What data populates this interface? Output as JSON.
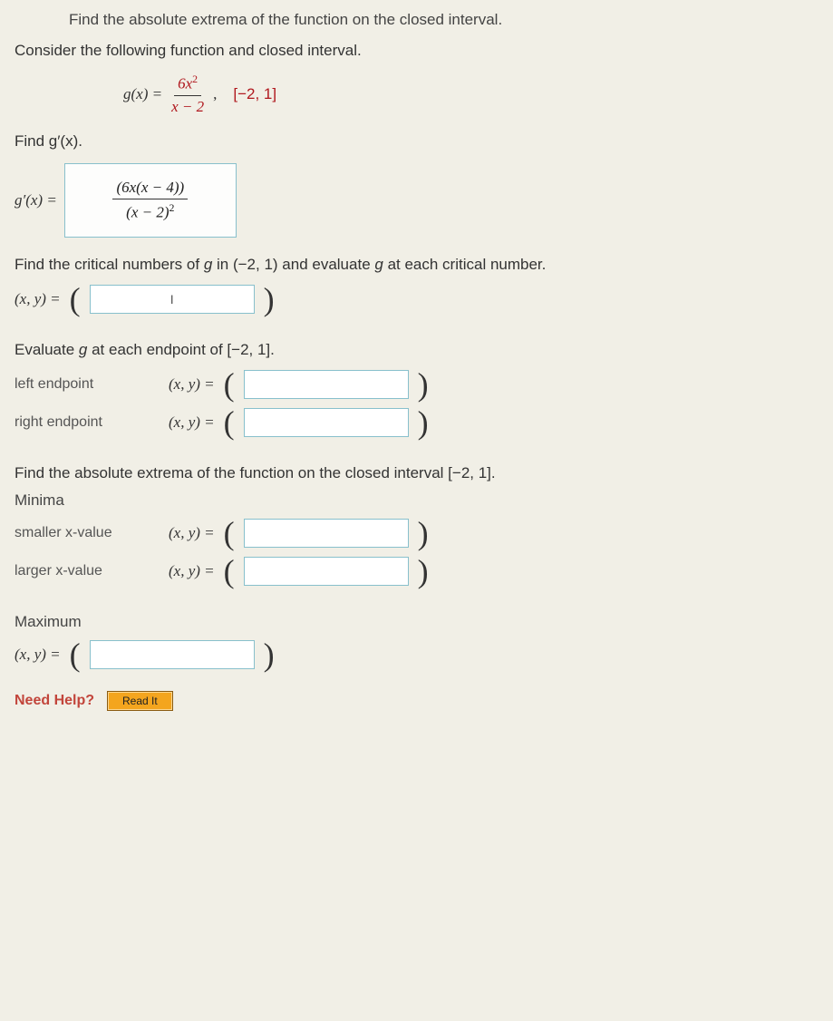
{
  "top_fragment": "Find the absolute extrema of the function on the closed interval.",
  "intro": "Consider the following function and closed interval.",
  "formula": {
    "lhs": "g(x) =",
    "numerator": "6x",
    "num_exp": "2",
    "denominator": "x − 2",
    "interval": "[−2, 1]"
  },
  "find_gprime": "Find g′(x).",
  "gprime": {
    "lhs": "g′(x) =",
    "num_left": "(6x(x − 4))",
    "den_body": "(x − 2)",
    "den_exp": "2"
  },
  "critical_text_a": "Find the critical numbers of ",
  "critical_g": "g",
  "critical_text_b": " in (−2, 1) and evaluate ",
  "critical_text_c": " at each critical number.",
  "xy_label": "(x, y) =",
  "critical_input_placeholder": "I",
  "eval_endpoint_text_a": "Evaluate ",
  "eval_endpoint_text_b": " at each endpoint of [−2, 1].",
  "left_endpoint_label": "left endpoint",
  "right_endpoint_label": "right endpoint",
  "abs_extrema_text": "Find the absolute extrema of the function on the closed interval [−2, 1].",
  "minima_label": "Minima",
  "smaller_x_label": "smaller x-value",
  "larger_x_label": "larger x-value",
  "maximum_label": "Maximum",
  "need_help": "Need Help?",
  "read_it": "Read It",
  "colors": {
    "accent_red": "#b0181e",
    "box_border": "#88c0cc",
    "button_bg": "#f4a51e",
    "page_bg": "#f1efe6"
  }
}
